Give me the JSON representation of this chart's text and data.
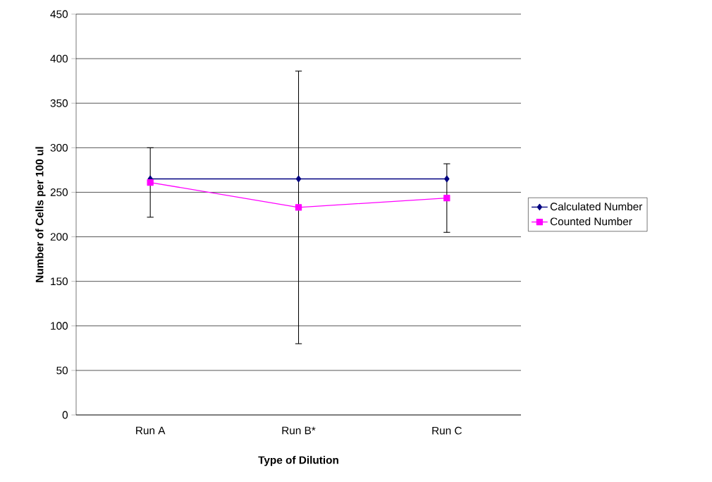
{
  "chart_data": {
    "type": "line",
    "xlabel": "Type of Dilution",
    "ylabel": "Number of Cells per 100 ul",
    "categories": [
      "Run A",
      "Run B*",
      "Run C"
    ],
    "series": [
      {
        "name": "Calculated Number",
        "color": "#000080",
        "marker": "diamond",
        "values": [
          265,
          265,
          265
        ]
      },
      {
        "name": "Counted Number",
        "color": "#ff00ff",
        "marker": "square",
        "values": [
          261,
          233,
          243.5
        ],
        "errors": [
          39,
          153,
          38.5
        ]
      }
    ],
    "ylim": [
      0,
      450
    ],
    "yticks": [
      0,
      50,
      100,
      150,
      200,
      250,
      300,
      350,
      400,
      450
    ],
    "grid": "y",
    "legend": "right"
  }
}
